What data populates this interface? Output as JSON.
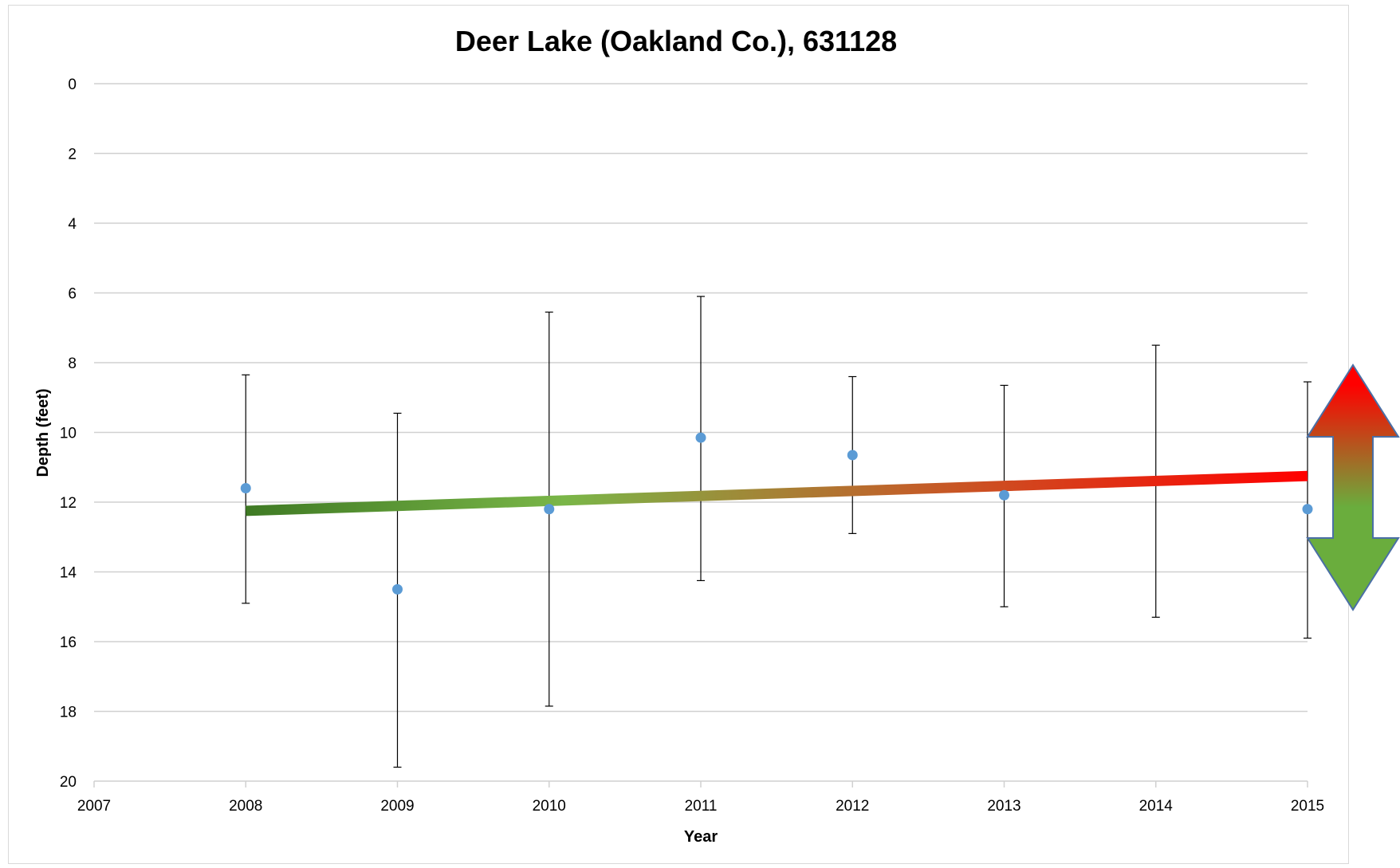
{
  "chart_data": {
    "type": "scatter",
    "title": "Deer Lake (Oakland Co.), 631128",
    "xlabel": "Year",
    "ylabel": "Depth (feet)",
    "xlim": [
      2007,
      2015
    ],
    "ylim": [
      0,
      20
    ],
    "y_axis_reversed": true,
    "x_ticks": [
      2007,
      2008,
      2009,
      2010,
      2011,
      2012,
      2013,
      2014,
      2015
    ],
    "y_ticks": [
      0,
      2,
      4,
      6,
      8,
      10,
      12,
      14,
      16,
      18,
      20
    ],
    "grid": "horizontal",
    "series": [
      {
        "points": [
          {
            "x": 2008,
            "y": 11.6,
            "err_low": 8.35,
            "err_high": 14.9
          },
          {
            "x": 2009,
            "y": 14.5,
            "err_low": 9.45,
            "err_high": 19.6
          },
          {
            "x": 2010,
            "y": 12.2,
            "err_low": 6.55,
            "err_high": 17.85
          },
          {
            "x": 2011,
            "y": 10.15,
            "err_low": 6.1,
            "err_high": 14.25
          },
          {
            "x": 2012,
            "y": 10.65,
            "err_low": 8.4,
            "err_high": 12.9
          },
          {
            "x": 2013,
            "y": 11.8,
            "err_low": 8.65,
            "err_high": 15.0
          },
          {
            "x": 2014,
            "y": null,
            "err_low": 7.5,
            "err_high": 15.3
          },
          {
            "x": 2015,
            "y": 12.2,
            "err_low": 8.55,
            "err_high": 15.9
          }
        ]
      }
    ],
    "trendline": {
      "x": [
        2008,
        2015
      ],
      "y": [
        12.25,
        11.25
      ]
    },
    "colors": {
      "point": "#5b9bd5",
      "trend_start": "#3f7a24",
      "trend_mid": "#7ab648",
      "trend_end": "#ff0000",
      "grid": "#d0d0d0",
      "error_bar": "#000000",
      "arrow_top": "#ff0000",
      "arrow_bottom": "#6aad3d",
      "arrow_outline": "#4a6fa5"
    },
    "annotation_icon": "double-headed-vertical-arrow"
  }
}
